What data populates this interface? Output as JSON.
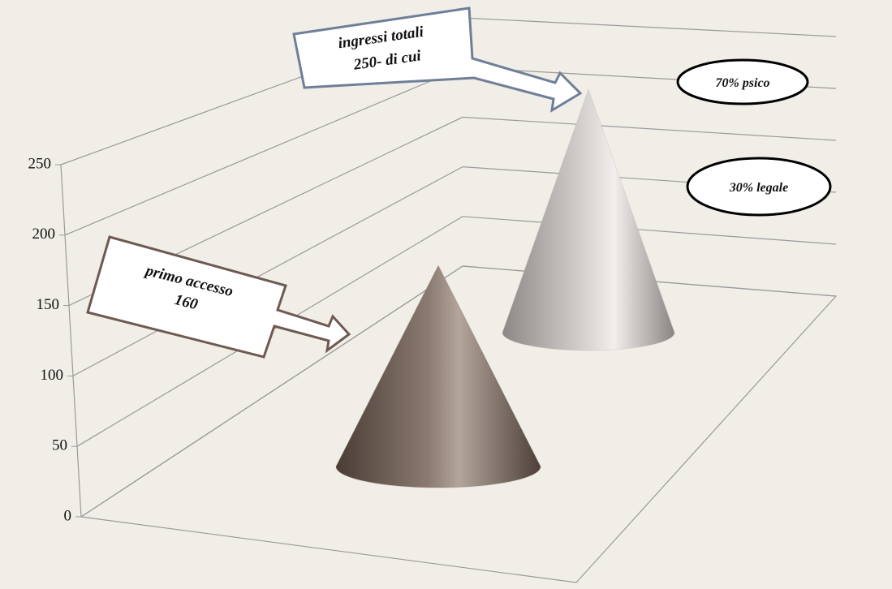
{
  "chart_data": {
    "type": "cone",
    "categories": [
      null,
      null
    ],
    "values": [
      160,
      250
    ],
    "colors": [
      "#7a6b61",
      "#b9b5b3"
    ],
    "ylim": [
      0,
      250
    ],
    "yticks": [
      0,
      50,
      100,
      150,
      200,
      250
    ],
    "grid": true,
    "annotations": [
      "ingressi totali",
      "250- di cui",
      "primo accesso",
      "160",
      "70%  psico",
      "30% legale"
    ]
  }
}
